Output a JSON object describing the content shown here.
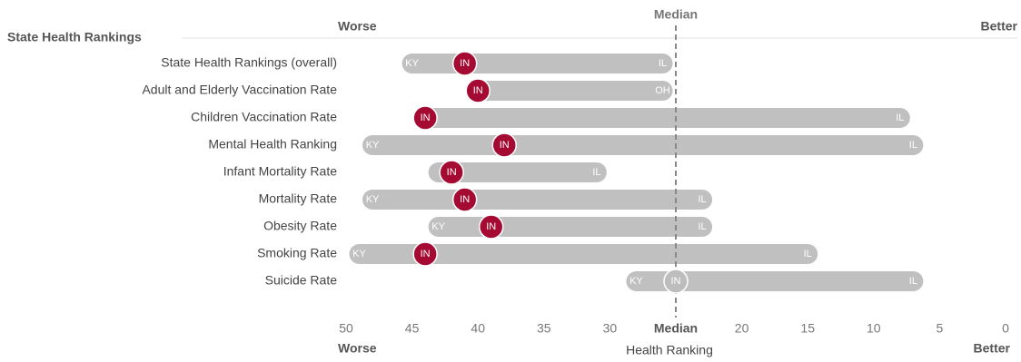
{
  "chart_data": {
    "type": "range",
    "title": "State Health Rankings",
    "x_label": "Health Ranking",
    "worse_label": "Worse",
    "better_label": "Better",
    "median_label": "Median",
    "median": 25,
    "categories": [
      "State Health Rankings (overall)",
      "Adult and Elderly Vaccination Rate",
      "Children Vaccination Rate",
      "Mental Health Ranking",
      "Infant Mortality Rate",
      "Mortality Rate",
      "Obesity Rate",
      "Smoking Rate",
      "Suicide Rate"
    ],
    "xlim": [
      50,
      0
    ],
    "xticks": [
      50,
      45,
      40,
      35,
      30,
      {
        "value": 25,
        "label": "Median"
      },
      20,
      15,
      10,
      5,
      0
    ],
    "range_color": "#c0c0c0",
    "range_start": {
      "values": [
        45,
        40,
        44,
        48,
        43,
        48,
        43,
        49,
        28
      ],
      "states": [
        "KY",
        null,
        null,
        "KY",
        null,
        "KY",
        "KY",
        "KY",
        "KY"
      ]
    },
    "range_end": {
      "values": [
        26,
        26,
        8,
        7,
        31,
        23,
        23,
        15,
        7
      ],
      "states": [
        "IL",
        "OH",
        "IL",
        "IL",
        "IL",
        "IL",
        "IL",
        "IL",
        "IL"
      ]
    },
    "highlight": {
      "name": "IN",
      "values": [
        41,
        40,
        44,
        38,
        42,
        41,
        39,
        44,
        25
      ],
      "colors": [
        "#a50a33",
        "#a50a33",
        "#a50a33",
        "#a50a33",
        "#a50a33",
        "#a50a33",
        "#a50a33",
        "#a50a33",
        "#bdbdbd"
      ]
    }
  }
}
